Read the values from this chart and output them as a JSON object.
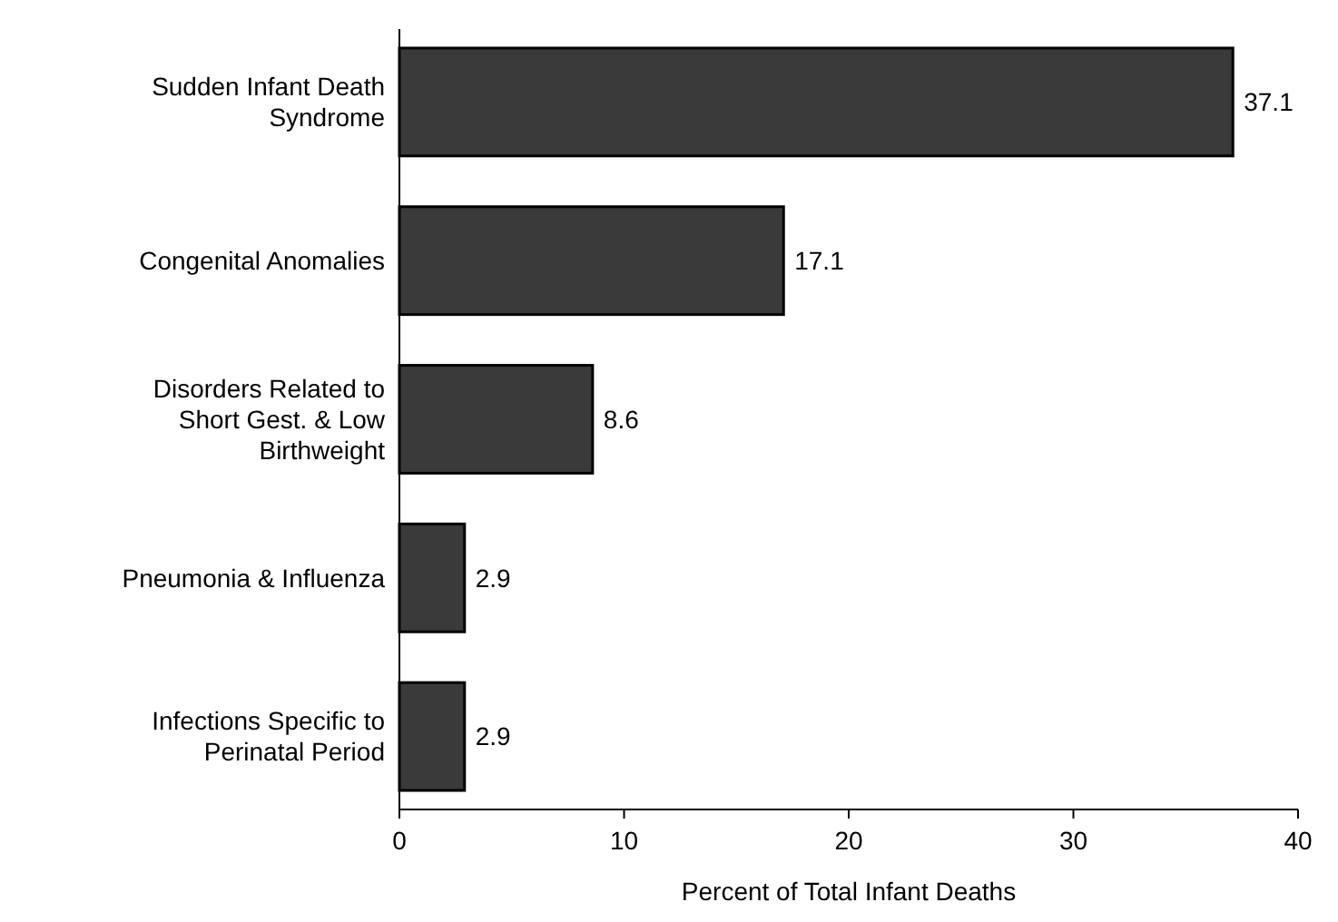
{
  "chart_data": {
    "type": "bar",
    "orientation": "horizontal",
    "xlabel": "Percent of Total Infant Deaths",
    "categories": [
      "Sudden Infant Death Syndrome",
      "Congenital Anomalies",
      "Disorders Related to Short Gest. & Low Birthweight",
      "Pneumonia & Influenza",
      "Infections Specific to Perinatal Period"
    ],
    "values": [
      37.1,
      17.1,
      8.6,
      2.9,
      2.9
    ],
    "color": "#3a3a3a",
    "xlim": [
      0,
      40
    ],
    "xticks": [
      0,
      10,
      20,
      30,
      40
    ],
    "data_labels": true,
    "grid": false
  }
}
